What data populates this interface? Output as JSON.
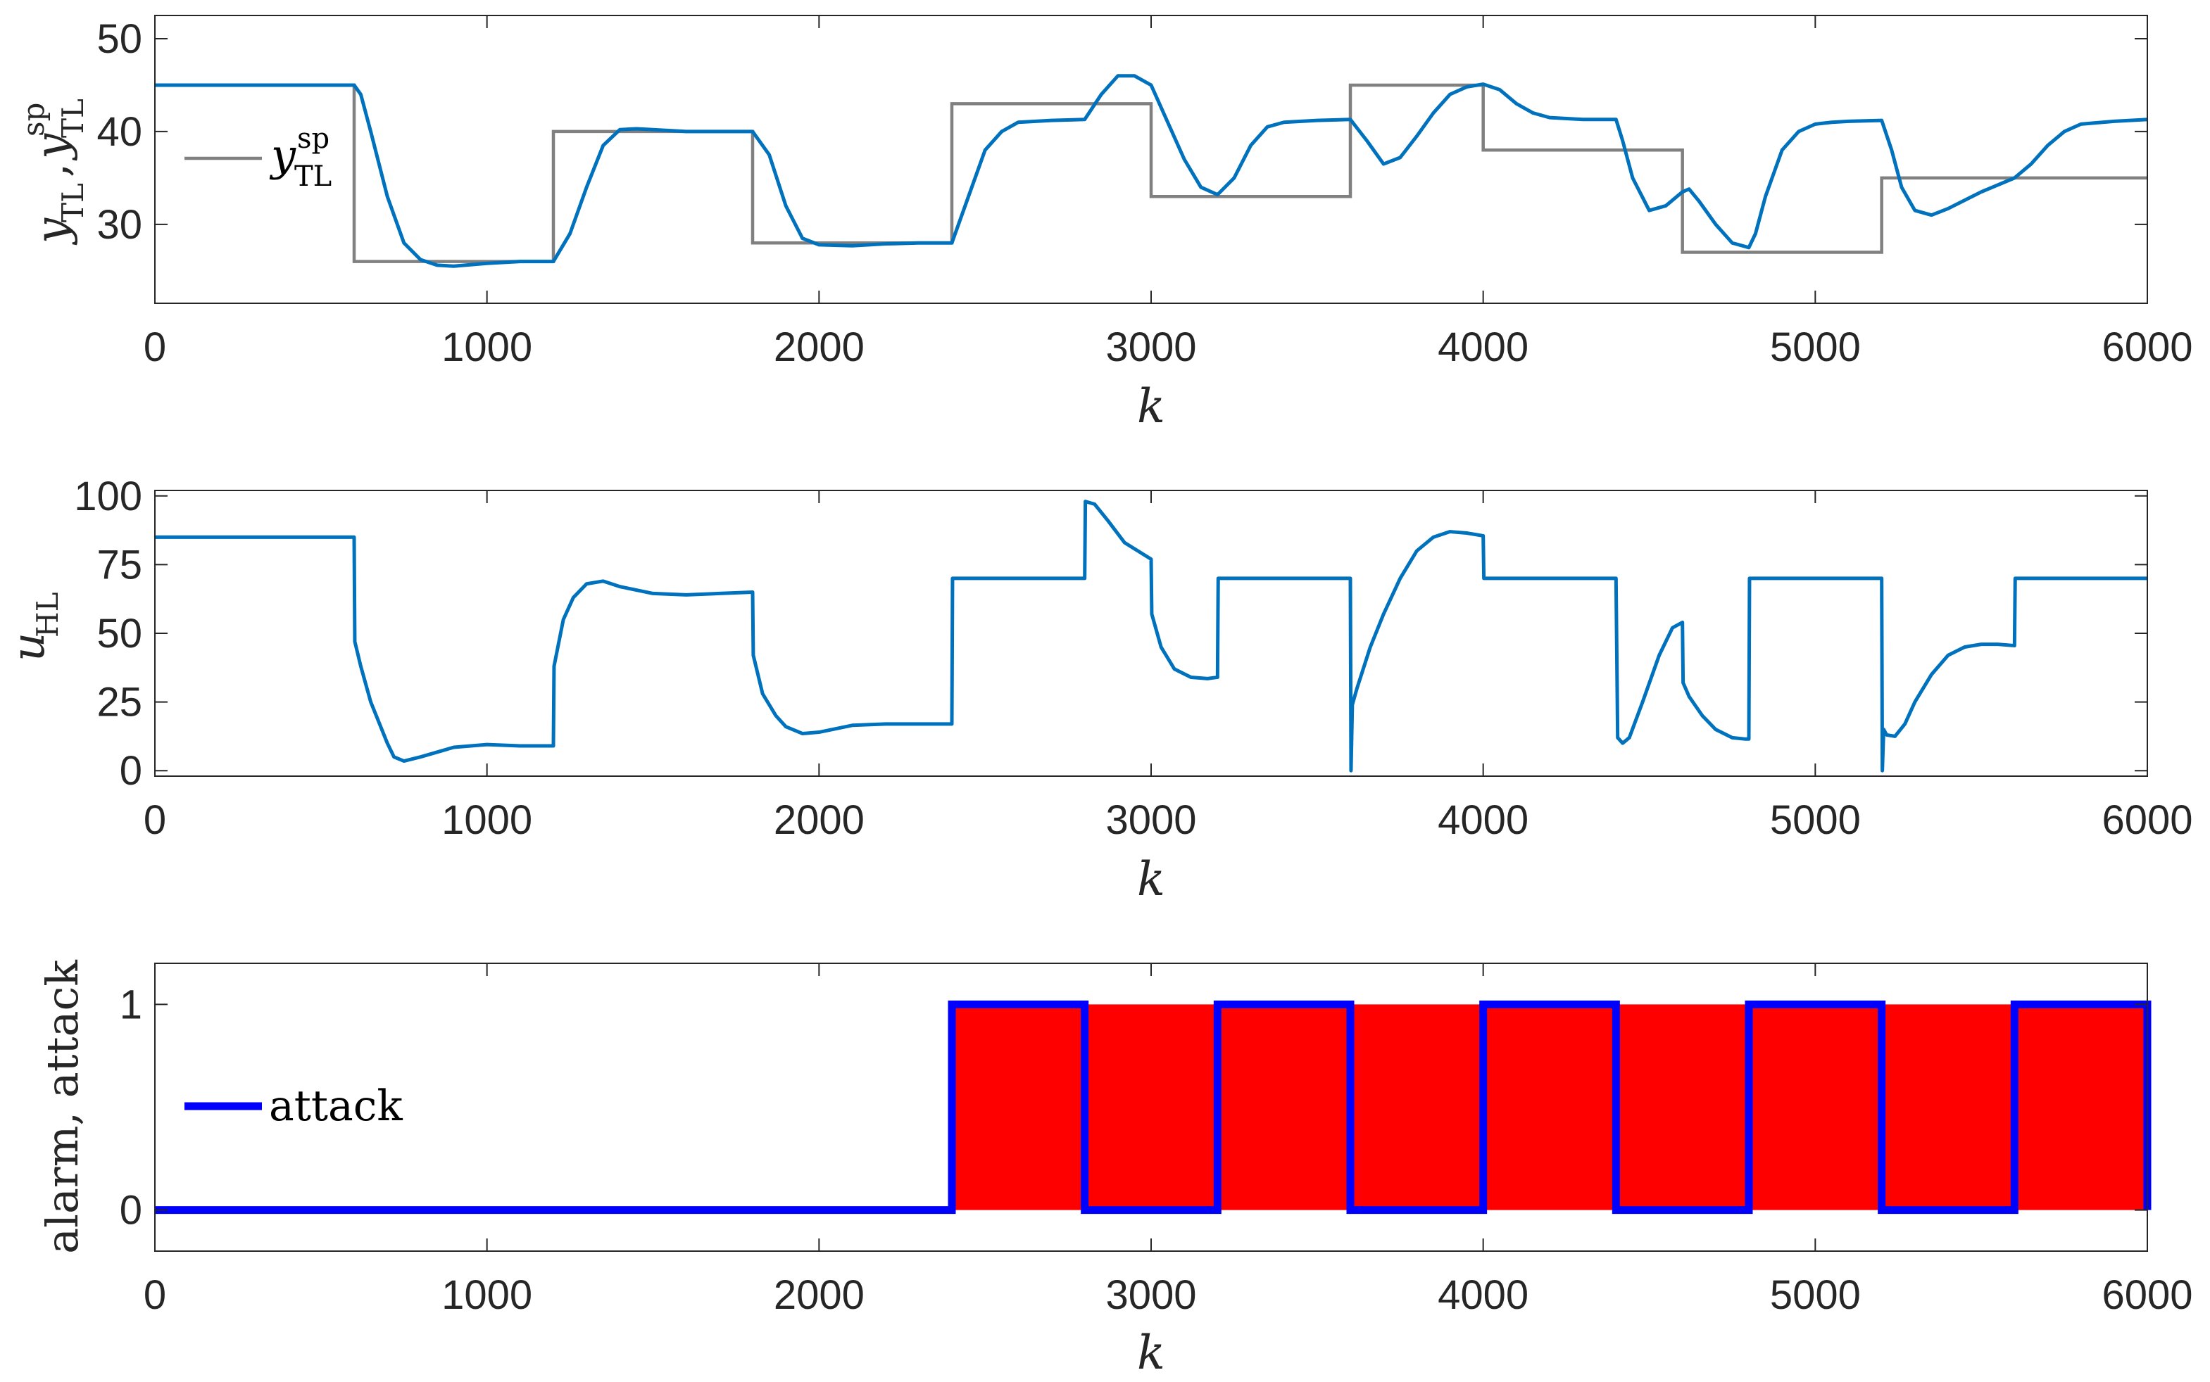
{
  "colors": {
    "blue_line": "#0072BD",
    "setpoint": "#808080",
    "attack": "#0000FF",
    "alarm": "#FF0000",
    "axis": "#262626"
  },
  "chart_data": [
    {
      "type": "line",
      "panel": "top",
      "xlabel": "k",
      "ylabel": "y_TL, y_TL^sp",
      "xlim": [
        0,
        6000
      ],
      "ylim": [
        21.5,
        52.5
      ],
      "xticks": [
        "0",
        "1000",
        "2000",
        "3000",
        "4000",
        "5000",
        "6000"
      ],
      "yticks": [
        "30",
        "40",
        "50"
      ],
      "grid": false,
      "legend": {
        "position": "left",
        "entries": [
          "y_TL^sp"
        ]
      },
      "series": [
        {
          "name": "y_TL^sp",
          "style": "step",
          "x": [
            0,
            600,
            600,
            1200,
            1200,
            1800,
            1800,
            2400,
            2400,
            3000,
            3000,
            3600,
            3600,
            4000,
            4000,
            4600,
            4600,
            5200,
            5200,
            6000
          ],
          "y": [
            45,
            45,
            26,
            26,
            40,
            40,
            28,
            28,
            43,
            43,
            33,
            33,
            45,
            45,
            38,
            38,
            27,
            27,
            35,
            35
          ]
        },
        {
          "style": "line",
          "x": [
            0,
            600,
            620,
            650,
            700,
            750,
            800,
            850,
            900,
            1000,
            1100,
            1200,
            1250,
            1300,
            1350,
            1400,
            1450,
            1500,
            1600,
            1700,
            1800,
            1850,
            1900,
            1950,
            2000,
            2100,
            2200,
            2300,
            2400,
            2450,
            2500,
            2550,
            2600,
            2700,
            2800,
            2850,
            2900,
            2950,
            3000,
            3050,
            3100,
            3150,
            3200,
            3250,
            3300,
            3350,
            3400,
            3500,
            3600,
            3650,
            3700,
            3750,
            3800,
            3850,
            3900,
            3950,
            4000,
            4050,
            4100,
            4150,
            4200,
            4300,
            4400,
            4420,
            4450,
            4500,
            4550,
            4600,
            4620,
            4650,
            4700,
            4750,
            4800,
            4820,
            4850,
            4900,
            4950,
            5000,
            5050,
            5100,
            5200,
            5230,
            5260,
            5300,
            5350,
            5400,
            5500,
            5600,
            5650,
            5700,
            5750,
            5800,
            5900,
            6000
          ],
          "y": [
            45,
            45,
            44,
            40,
            33,
            28,
            26.2,
            25.6,
            25.5,
            25.8,
            26,
            26,
            29,
            34,
            38.5,
            40.2,
            40.3,
            40.2,
            40,
            40,
            40,
            37.5,
            32,
            28.5,
            27.8,
            27.7,
            27.9,
            28,
            28,
            33,
            38,
            40,
            41,
            41.2,
            41.3,
            44,
            46,
            46,
            45,
            41,
            37,
            34,
            33.2,
            35,
            38.5,
            40.5,
            41,
            41.2,
            41.3,
            39,
            36.5,
            37.2,
            39.5,
            42,
            44,
            44.8,
            45.1,
            44.5,
            43,
            42,
            41.5,
            41.3,
            41.3,
            39,
            35,
            31.5,
            32,
            33.5,
            33.8,
            32.5,
            30,
            28,
            27.5,
            29,
            33,
            38,
            40,
            40.8,
            41,
            41.1,
            41.2,
            38,
            34,
            31.5,
            31,
            31.7,
            33.5,
            35,
            36.5,
            38.5,
            40,
            40.8,
            41.1,
            41.3
          ]
        }
      ]
    },
    {
      "type": "line",
      "panel": "middle",
      "xlabel": "k",
      "ylabel": "u_HL",
      "xlim": [
        0,
        6000
      ],
      "ylim": [
        -2,
        102
      ],
      "xticks": [
        "0",
        "1000",
        "2000",
        "3000",
        "4000",
        "5000",
        "6000"
      ],
      "yticks": [
        "0",
        "25",
        "50",
        "75",
        "100"
      ],
      "grid": false,
      "series": [
        {
          "style": "line",
          "x": [
            0,
            600,
            602,
            620,
            650,
            700,
            720,
            750,
            800,
            900,
            1000,
            1100,
            1200,
            1202,
            1230,
            1260,
            1300,
            1350,
            1400,
            1500,
            1600,
            1700,
            1800,
            1802,
            1830,
            1870,
            1900,
            1950,
            2000,
            2100,
            2200,
            2300,
            2400,
            2402,
            2500,
            2600,
            2700,
            2800,
            2802,
            2830,
            2870,
            2920,
            3000,
            3002,
            3030,
            3070,
            3120,
            3170,
            3200,
            3202,
            3300,
            3400,
            3500,
            3600,
            3602,
            3606,
            3620,
            3660,
            3700,
            3750,
            3800,
            3850,
            3900,
            3950,
            4000,
            4002,
            4100,
            4200,
            4300,
            4400,
            4405,
            4420,
            4440,
            4480,
            4530,
            4570,
            4600,
            4602,
            4620,
            4660,
            4700,
            4750,
            4790,
            4800,
            4802,
            4900,
            5000,
            5100,
            5200,
            5202,
            5206,
            5215,
            5240,
            5270,
            5300,
            5350,
            5400,
            5450,
            5500,
            5550,
            5600,
            5602,
            5700,
            5800,
            5900,
            6000
          ],
          "y": [
            85,
            85,
            47,
            38,
            25,
            10,
            5,
            3.5,
            5,
            8.5,
            9.5,
            9,
            9,
            38,
            55,
            63,
            68,
            69,
            67,
            64.5,
            64,
            64.5,
            65,
            42,
            28,
            20,
            16,
            13.5,
            14,
            16.5,
            17,
            17,
            17,
            70,
            70,
            70,
            70,
            70,
            98,
            97,
            91,
            83,
            77,
            57,
            45,
            37,
            34,
            33.5,
            34,
            70,
            70,
            70,
            70,
            70,
            0,
            24,
            30,
            45,
            57,
            70,
            80,
            85,
            87,
            86.5,
            85.5,
            70,
            70,
            70,
            70,
            70,
            12,
            10,
            12,
            25,
            42,
            52,
            54,
            32,
            27,
            20,
            15,
            12,
            11.5,
            11.5,
            70,
            70,
            70,
            70,
            70,
            0,
            15,
            13,
            12.5,
            17,
            25,
            35,
            42,
            45,
            46,
            46,
            45.5,
            70,
            70,
            70,
            70,
            70
          ]
        }
      ]
    },
    {
      "type": "area",
      "panel": "bottom",
      "xlabel": "k",
      "ylabel": "alarm, attack",
      "xlim": [
        0,
        6000
      ],
      "ylim": [
        -0.2,
        1.2
      ],
      "xticks": [
        "0",
        "1000",
        "2000",
        "3000",
        "4000",
        "5000",
        "6000"
      ],
      "yticks": [
        "0",
        "1"
      ],
      "grid": false,
      "legend": {
        "position": "left",
        "entries": [
          "attack"
        ]
      },
      "series": [
        {
          "name": "alarm",
          "style": "area",
          "x": [
            0,
            2400,
            2400,
            6000
          ],
          "y": [
            0,
            0,
            1,
            1
          ]
        },
        {
          "name": "attack",
          "style": "step",
          "x": [
            0,
            2400,
            2400,
            2800,
            2800,
            3200,
            3200,
            3600,
            3600,
            4000,
            4000,
            4400,
            4400,
            4800,
            4800,
            5200,
            5200,
            5600,
            5600,
            6000,
            6000
          ],
          "y": [
            0,
            0,
            1,
            1,
            0,
            0,
            1,
            1,
            0,
            0,
            1,
            1,
            0,
            0,
            1,
            1,
            0,
            0,
            1,
            1,
            0
          ]
        }
      ]
    }
  ]
}
